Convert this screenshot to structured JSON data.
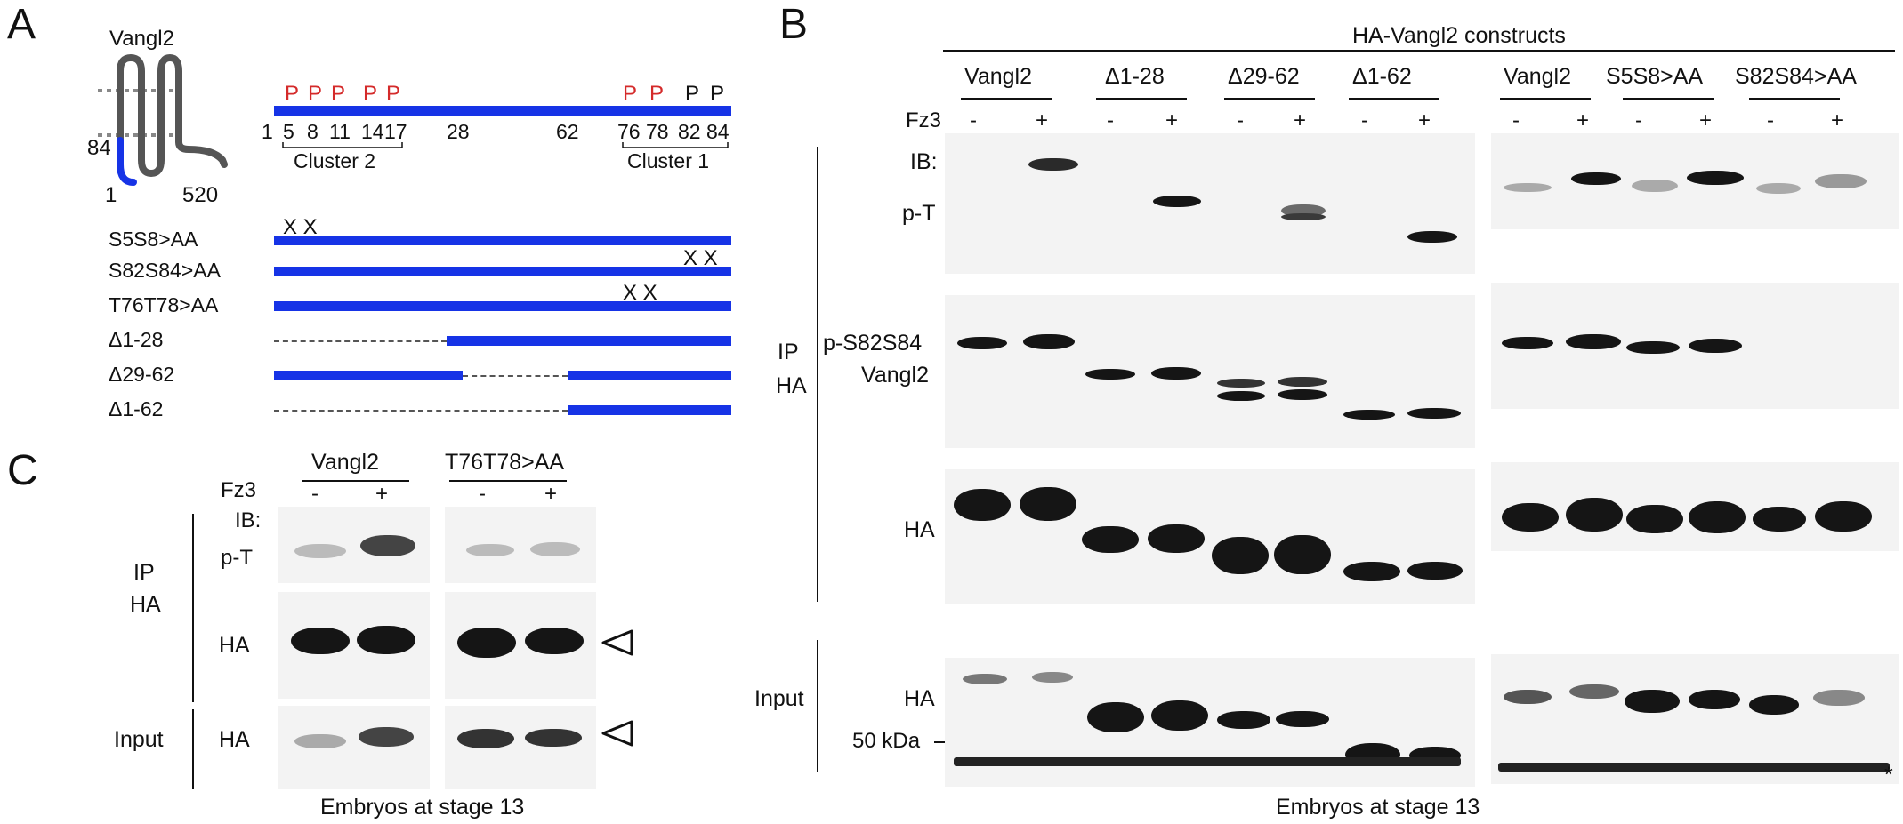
{
  "panel_a": {
    "label": "A",
    "protein_name": "Vangl2",
    "topo_n_label": "84",
    "topo_start": "1",
    "topo_end": "520",
    "site_marks": [
      {
        "mark": "P",
        "color": "#d42a2a"
      },
      {
        "mark": "P",
        "color": "#d42a2a"
      },
      {
        "mark": "P",
        "color": "#d42a2a"
      },
      {
        "mark": "P",
        "color": "#d42a2a"
      },
      {
        "mark": "P",
        "color": "#d42a2a"
      },
      {
        "mark": "P",
        "color": "#d42a2a"
      },
      {
        "mark": "P",
        "color": "#d42a2a"
      },
      {
        "mark": "P",
        "color": "#111111"
      },
      {
        "mark": "P",
        "color": "#111111"
      }
    ],
    "positions": [
      "1",
      "5",
      "8",
      "11",
      "14",
      "17",
      "28",
      "62",
      "76",
      "78",
      "82",
      "84"
    ],
    "cluster2": "Cluster 2",
    "cluster1": "Cluster 1",
    "mutants": [
      {
        "name": "S5S8>AA",
        "marks": "X X"
      },
      {
        "name": "S82S84>AA",
        "marks": "X X"
      },
      {
        "name": "T76T78>AA",
        "marks": "X X"
      },
      {
        "name": "Δ1-28"
      },
      {
        "name": "Δ29-62"
      },
      {
        "name": "Δ1-62"
      }
    ],
    "bar_color": "#1633e6"
  },
  "panel_b": {
    "label": "B",
    "header": "HA-Vangl2 constructs",
    "constructs_left": [
      "Vangl2",
      "Δ1-28",
      "Δ29-62",
      "Δ1-62"
    ],
    "constructs_right": [
      "Vangl2",
      "S5S8>AA",
      "S82S84>AA"
    ],
    "fz3_label": "Fz3",
    "minus": "-",
    "plus": "+",
    "ib_label": "IB:",
    "row_labels": {
      "pt": "p-T",
      "ps_line1": "p-S82S84",
      "ps_line2": "Vangl2",
      "ha": "HA",
      "input_ha": "HA",
      "marker": "50 kDa"
    },
    "side_labels": {
      "ip_line1": "IP",
      "ip_line2": "HA",
      "input": "Input"
    },
    "asterisk": "*",
    "footer": "Embryos at stage 13"
  },
  "panel_c": {
    "label": "C",
    "constructs": [
      "Vangl2",
      "T76T78>AA"
    ],
    "fz3_label": "Fz3",
    "minus": "-",
    "plus": "+",
    "ib_label": "IB:",
    "row_labels": {
      "pt": "p-T",
      "ha": "HA",
      "input_ha": "HA"
    },
    "side_labels": {
      "ip_line1": "IP",
      "ip_line2": "HA",
      "input": "Input"
    },
    "footer": "Embryos at stage 13"
  }
}
